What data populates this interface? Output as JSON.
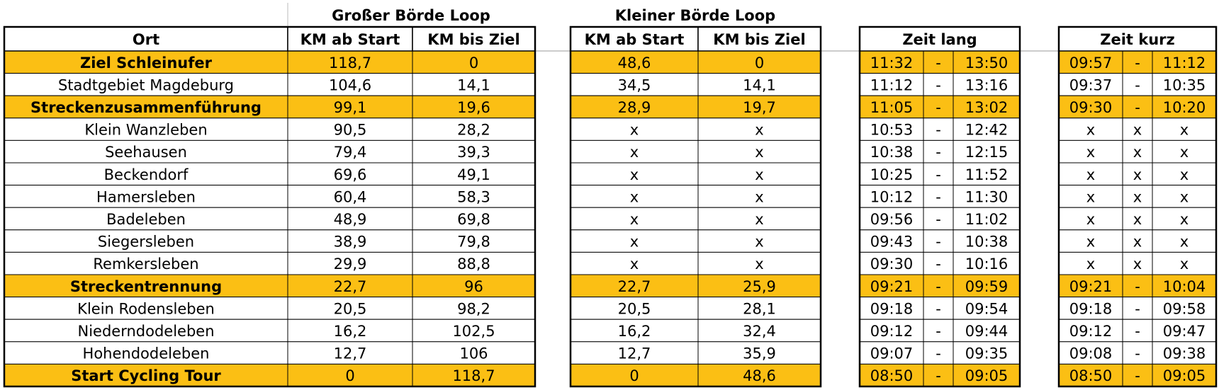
{
  "groups": {
    "gross": "Großer Börde Loop",
    "klein": "Kleiner Börde Loop"
  },
  "headers": {
    "ort": "Ort",
    "gross_ab": "KM ab Start",
    "gross_bis": "KM bis Ziel",
    "klein_ab": "KM ab Start",
    "klein_bis": "KM bis Ziel",
    "lang": "Zeit lang",
    "kurz": "Zeit kurz"
  },
  "highlight_color": "#fbbf14",
  "rows": [
    {
      "ort": "Ziel Schleinufer",
      "gross_ab": "118,7",
      "gross_bis": "0",
      "klein_ab": "48,6",
      "klein_bis": "0",
      "lang": [
        "11:32",
        "-",
        "13:50"
      ],
      "kurz": [
        "09:57",
        "-",
        "11:12"
      ],
      "highlight": true
    },
    {
      "ort": "Stadtgebiet Magdeburg",
      "gross_ab": "104,6",
      "gross_bis": "14,1",
      "klein_ab": "34,5",
      "klein_bis": "14,1",
      "lang": [
        "11:12",
        "-",
        "13:16"
      ],
      "kurz": [
        "09:37",
        "-",
        "10:35"
      ],
      "highlight": false
    },
    {
      "ort": "Streckenzusammenführung",
      "gross_ab": "99,1",
      "gross_bis": "19,6",
      "klein_ab": "28,9",
      "klein_bis": "19,7",
      "lang": [
        "11:05",
        "-",
        "13:02"
      ],
      "kurz": [
        "09:30",
        "-",
        "10:20"
      ],
      "highlight": true
    },
    {
      "ort": "Klein Wanzleben",
      "gross_ab": "90,5",
      "gross_bis": "28,2",
      "klein_ab": "x",
      "klein_bis": "x",
      "lang": [
        "10:53",
        "-",
        "12:42"
      ],
      "kurz": [
        "x",
        "x",
        "x"
      ],
      "highlight": false
    },
    {
      "ort": "Seehausen",
      "gross_ab": "79,4",
      "gross_bis": "39,3",
      "klein_ab": "x",
      "klein_bis": "x",
      "lang": [
        "10:38",
        "-",
        "12:15"
      ],
      "kurz": [
        "x",
        "x",
        "x"
      ],
      "highlight": false
    },
    {
      "ort": "Beckendorf",
      "gross_ab": "69,6",
      "gross_bis": "49,1",
      "klein_ab": "x",
      "klein_bis": "x",
      "lang": [
        "10:25",
        "-",
        "11:52"
      ],
      "kurz": [
        "x",
        "x",
        "x"
      ],
      "highlight": false
    },
    {
      "ort": "Hamersleben",
      "gross_ab": "60,4",
      "gross_bis": "58,3",
      "klein_ab": "x",
      "klein_bis": "x",
      "lang": [
        "10:12",
        "-",
        "11:30"
      ],
      "kurz": [
        "x",
        "x",
        "x"
      ],
      "highlight": false
    },
    {
      "ort": "Badeleben",
      "gross_ab": "48,9",
      "gross_bis": "69,8",
      "klein_ab": "x",
      "klein_bis": "x",
      "lang": [
        "09:56",
        "-",
        "11:02"
      ],
      "kurz": [
        "x",
        "x",
        "x"
      ],
      "highlight": false
    },
    {
      "ort": "Siegersleben",
      "gross_ab": "38,9",
      "gross_bis": "79,8",
      "klein_ab": "x",
      "klein_bis": "x",
      "lang": [
        "09:43",
        "-",
        "10:38"
      ],
      "kurz": [
        "x",
        "x",
        "x"
      ],
      "highlight": false
    },
    {
      "ort": "Remkersleben",
      "gross_ab": "29,9",
      "gross_bis": "88,8",
      "klein_ab": "x",
      "klein_bis": "x",
      "lang": [
        "09:30",
        "-",
        "10:16"
      ],
      "kurz": [
        "x",
        "x",
        "x"
      ],
      "highlight": false
    },
    {
      "ort": "Streckentrennung",
      "gross_ab": "22,7",
      "gross_bis": "96",
      "klein_ab": "22,7",
      "klein_bis": "25,9",
      "lang": [
        "09:21",
        "-",
        "09:59"
      ],
      "kurz": [
        "09:21",
        "-",
        "10:04"
      ],
      "highlight": true
    },
    {
      "ort": "Klein Rodensleben",
      "gross_ab": "20,5",
      "gross_bis": "98,2",
      "klein_ab": "20,5",
      "klein_bis": "28,1",
      "lang": [
        "09:18",
        "-",
        "09:54"
      ],
      "kurz": [
        "09:18",
        "-",
        "09:58"
      ],
      "highlight": false
    },
    {
      "ort": "Niederndodeleben",
      "gross_ab": "16,2",
      "gross_bis": "102,5",
      "klein_ab": "16,2",
      "klein_bis": "32,4",
      "lang": [
        "09:12",
        "-",
        "09:44"
      ],
      "kurz": [
        "09:12",
        "-",
        "09:47"
      ],
      "highlight": false
    },
    {
      "ort": "Hohendodeleben",
      "gross_ab": "12,7",
      "gross_bis": "106",
      "klein_ab": "12,7",
      "klein_bis": "35,9",
      "lang": [
        "09:07",
        "-",
        "09:35"
      ],
      "kurz": [
        "09:08",
        "-",
        "09:38"
      ],
      "highlight": false
    },
    {
      "ort": "Start Cycling Tour",
      "gross_ab": "0",
      "gross_bis": "118,7",
      "klein_ab": "0",
      "klein_bis": "48,6",
      "lang": [
        "08:50",
        "-",
        "09:05"
      ],
      "kurz": [
        "08:50",
        "-",
        "09:05"
      ],
      "highlight": true
    }
  ]
}
